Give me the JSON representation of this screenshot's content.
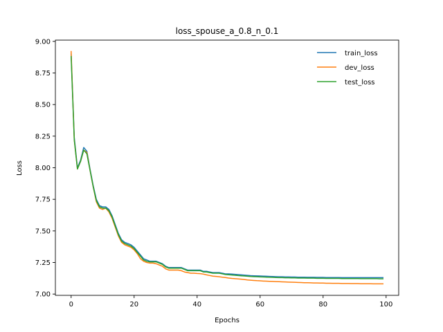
{
  "chart_data": {
    "type": "line",
    "title": "loss_spouse_a_0.8_n_0.1",
    "xlabel": "Epochs",
    "ylabel": "Loss",
    "xlim": [
      -5,
      104
    ],
    "ylim": [
      6.99,
      9.01
    ],
    "xticks": [
      0,
      20,
      40,
      60,
      80,
      100
    ],
    "yticks": [
      7.0,
      7.25,
      7.5,
      7.75,
      8.0,
      8.25,
      8.5,
      8.75,
      9.0
    ],
    "xtick_labels": [
      "0",
      "20",
      "40",
      "60",
      "80",
      "100"
    ],
    "ytick_labels": [
      "7.00",
      "7.25",
      "7.50",
      "7.75",
      "8.00",
      "8.25",
      "8.50",
      "8.75",
      "9.00"
    ],
    "grid": false,
    "legend_position": "top-right",
    "x": [
      0,
      1,
      2,
      3,
      4,
      5,
      6,
      7,
      8,
      9,
      10,
      11,
      12,
      13,
      14,
      15,
      16,
      17,
      18,
      19,
      20,
      21,
      22,
      23,
      24,
      25,
      26,
      27,
      28,
      29,
      30,
      31,
      32,
      33,
      34,
      35,
      36,
      37,
      38,
      39,
      40,
      41,
      42,
      43,
      44,
      45,
      46,
      47,
      48,
      49,
      50,
      51,
      52,
      53,
      54,
      55,
      56,
      57,
      58,
      59,
      60,
      61,
      62,
      63,
      64,
      65,
      66,
      67,
      68,
      69,
      70,
      71,
      72,
      73,
      74,
      75,
      76,
      77,
      78,
      79,
      80,
      81,
      82,
      83,
      84,
      85,
      86,
      87,
      88,
      89,
      90,
      91,
      92,
      93,
      94,
      95,
      96,
      97,
      98,
      99
    ],
    "series": [
      {
        "name": "train_loss",
        "color": "#1f77b4",
        "values": [
          8.9,
          8.24,
          8.0,
          8.06,
          8.16,
          8.13,
          7.99,
          7.86,
          7.75,
          7.7,
          7.69,
          7.69,
          7.67,
          7.62,
          7.55,
          7.48,
          7.43,
          7.41,
          7.4,
          7.39,
          7.37,
          7.34,
          7.31,
          7.28,
          7.27,
          7.26,
          7.26,
          7.26,
          7.25,
          7.24,
          7.22,
          7.21,
          7.21,
          7.21,
          7.21,
          7.21,
          7.2,
          7.19,
          7.19,
          7.19,
          7.19,
          7.19,
          7.18,
          7.18,
          7.175,
          7.17,
          7.17,
          7.17,
          7.165,
          7.16,
          7.16,
          7.158,
          7.156,
          7.154,
          7.152,
          7.15,
          7.148,
          7.146,
          7.145,
          7.144,
          7.143,
          7.142,
          7.141,
          7.14,
          7.139,
          7.138,
          7.137,
          7.137,
          7.136,
          7.136,
          7.135,
          7.135,
          7.134,
          7.134,
          7.134,
          7.133,
          7.133,
          7.133,
          7.132,
          7.132,
          7.132,
          7.131,
          7.131,
          7.131,
          7.131,
          7.131,
          7.13,
          7.13,
          7.13,
          7.13,
          7.13,
          7.13,
          7.13,
          7.13,
          7.13,
          7.13,
          7.13,
          7.13,
          7.13,
          7.13
        ]
      },
      {
        "name": "dev_loss",
        "color": "#ff7f0e",
        "values": [
          8.92,
          8.22,
          7.99,
          8.05,
          8.14,
          8.12,
          7.98,
          7.85,
          7.73,
          7.68,
          7.67,
          7.68,
          7.65,
          7.6,
          7.53,
          7.46,
          7.41,
          7.39,
          7.38,
          7.37,
          7.35,
          7.32,
          7.28,
          7.26,
          7.25,
          7.245,
          7.245,
          7.24,
          7.23,
          7.22,
          7.2,
          7.19,
          7.19,
          7.19,
          7.19,
          7.185,
          7.175,
          7.17,
          7.165,
          7.165,
          7.163,
          7.162,
          7.158,
          7.152,
          7.147,
          7.142,
          7.14,
          7.137,
          7.134,
          7.131,
          7.127,
          7.124,
          7.122,
          7.12,
          7.118,
          7.115,
          7.112,
          7.11,
          7.108,
          7.106,
          7.105,
          7.103,
          7.102,
          7.101,
          7.1,
          7.099,
          7.098,
          7.097,
          7.096,
          7.095,
          7.094,
          7.093,
          7.092,
          7.091,
          7.09,
          7.09,
          7.089,
          7.088,
          7.088,
          7.087,
          7.087,
          7.086,
          7.086,
          7.085,
          7.085,
          7.085,
          7.084,
          7.084,
          7.084,
          7.083,
          7.083,
          7.083,
          7.082,
          7.082,
          7.082,
          7.082,
          7.081,
          7.081,
          7.081,
          7.081
        ]
      },
      {
        "name": "test_loss",
        "color": "#2ca02c",
        "values": [
          8.88,
          8.22,
          7.99,
          8.05,
          8.14,
          8.11,
          7.98,
          7.85,
          7.74,
          7.69,
          7.68,
          7.68,
          7.66,
          7.61,
          7.54,
          7.47,
          7.42,
          7.4,
          7.39,
          7.38,
          7.36,
          7.33,
          7.3,
          7.27,
          7.26,
          7.255,
          7.255,
          7.255,
          7.245,
          7.235,
          7.215,
          7.205,
          7.205,
          7.205,
          7.205,
          7.205,
          7.195,
          7.185,
          7.185,
          7.185,
          7.185,
          7.185,
          7.175,
          7.175,
          7.17,
          7.165,
          7.165,
          7.165,
          7.16,
          7.155,
          7.153,
          7.151,
          7.149,
          7.147,
          7.145,
          7.143,
          7.141,
          7.139,
          7.138,
          7.137,
          7.136,
          7.135,
          7.134,
          7.133,
          7.132,
          7.131,
          7.13,
          7.13,
          7.129,
          7.129,
          7.128,
          7.128,
          7.127,
          7.127,
          7.127,
          7.126,
          7.126,
          7.126,
          7.125,
          7.125,
          7.125,
          7.124,
          7.124,
          7.124,
          7.124,
          7.124,
          7.123,
          7.123,
          7.123,
          7.123,
          7.123,
          7.123,
          7.122,
          7.122,
          7.122,
          7.122,
          7.122,
          7.122,
          7.121,
          7.121
        ]
      }
    ]
  }
}
